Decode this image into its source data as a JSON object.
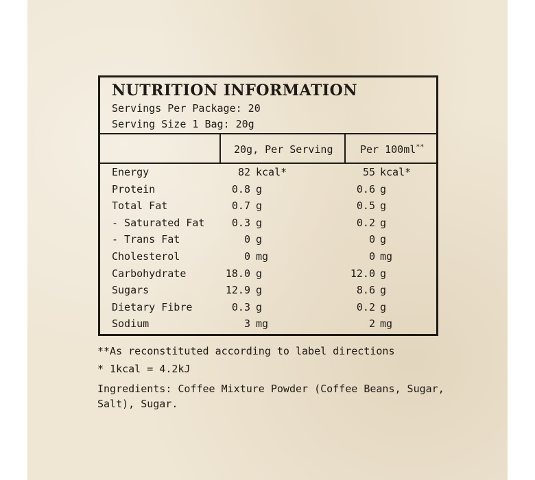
{
  "title": "NUTRITION INFORMATION",
  "servings_per_package": "Servings Per Package: 20",
  "serving_size": "Serving Size 1 Bag: 20g",
  "columns": {
    "per_serving": "20g, Per Serving",
    "per_100ml": "Per 100ml",
    "per_100ml_mark": "**"
  },
  "rows": [
    {
      "label": "Energy",
      "serving_value": "82",
      "serving_unit": "kcal*",
      "ml_value": "55",
      "ml_unit": "kcal*"
    },
    {
      "label": "Protein",
      "serving_value": "0.8",
      "serving_unit": "g",
      "ml_value": "0.6",
      "ml_unit": "g"
    },
    {
      "label": "Total Fat",
      "serving_value": "0.7",
      "serving_unit": "g",
      "ml_value": "0.5",
      "ml_unit": "g"
    },
    {
      "label": "- Saturated Fat",
      "serving_value": "0.3",
      "serving_unit": "g",
      "ml_value": "0.2",
      "ml_unit": "g"
    },
    {
      "label": "- Trans Fat",
      "serving_value": "0",
      "serving_unit": "g",
      "ml_value": "0",
      "ml_unit": "g"
    },
    {
      "label": "Cholesterol",
      "serving_value": "0",
      "serving_unit": "mg",
      "ml_value": "0",
      "ml_unit": "mg"
    },
    {
      "label": "Carbohydrate",
      "serving_value": "18.0",
      "serving_unit": "g",
      "ml_value": "12.0",
      "ml_unit": "g"
    },
    {
      "label": "Sugars",
      "serving_value": "12.9",
      "serving_unit": "g",
      "ml_value": "8.6",
      "ml_unit": "g"
    },
    {
      "label": "Dietary Fibre",
      "serving_value": "0.3",
      "serving_unit": "g",
      "ml_value": "0.2",
      "ml_unit": "g"
    },
    {
      "label": "Sodium",
      "serving_value": "3",
      "serving_unit": "mg",
      "ml_value": "2",
      "ml_unit": "mg"
    }
  ],
  "footnotes": {
    "reconstituted": "**As reconstituted according to label directions",
    "kcal": "* 1kcal = 4.2kJ",
    "ingredients_line1": "Ingredients: Coffee Mixture Powder (Coffee Beans, Sugar,",
    "ingredients_line2": "Salt), Sugar."
  }
}
